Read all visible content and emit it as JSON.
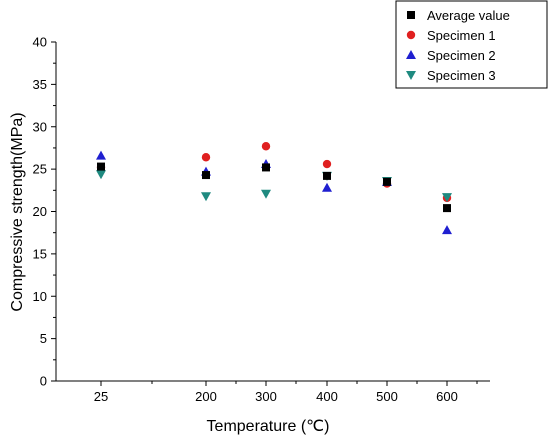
{
  "chart_data": {
    "type": "scatter",
    "title": "",
    "xlabel": "Temperature (℃)",
    "ylabel": "Compressive strength(MPa)",
    "x_categories": [
      "25",
      "200",
      "300",
      "400",
      "500",
      "600"
    ],
    "ylim": [
      0,
      40
    ],
    "yticks": [
      0,
      5,
      10,
      15,
      20,
      25,
      30,
      35,
      40
    ],
    "grid": false,
    "legend_position": "top-right",
    "series": [
      {
        "name": "Average value",
        "marker": "square",
        "color": "#000000",
        "x": [
          "25",
          "200",
          "300",
          "400",
          "500",
          "600"
        ],
        "y": [
          25.3,
          24.3,
          25.2,
          24.2,
          23.5,
          20.4
        ]
      },
      {
        "name": "Specimen 1",
        "marker": "circle",
        "color": "#e02020",
        "x": [
          "25",
          "200",
          "300",
          "400",
          "500",
          "600"
        ],
        "y": [
          25.2,
          26.4,
          27.7,
          25.6,
          23.3,
          21.6
        ]
      },
      {
        "name": "Specimen 2",
        "marker": "triangle-up",
        "color": "#1f1fd0",
        "x": [
          "25",
          "200",
          "300",
          "400",
          "500",
          "600"
        ],
        "y": [
          26.6,
          24.7,
          25.6,
          22.8,
          23.5,
          17.8
        ]
      },
      {
        "name": "Specimen 3",
        "marker": "triangle-down",
        "color": "#1f8a80",
        "x": [
          "25",
          "200",
          "300",
          "400",
          "500",
          "600"
        ],
        "y": [
          24.4,
          21.8,
          22.1,
          24.2,
          23.6,
          21.7
        ]
      }
    ]
  }
}
